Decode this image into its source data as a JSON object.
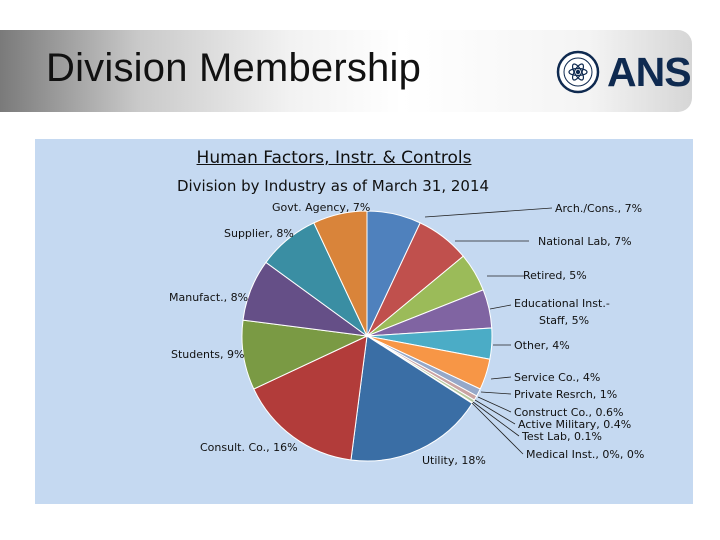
{
  "slide": {
    "title": "Division Membership",
    "logo_text": "ANS"
  },
  "chart_data": {
    "type": "pie",
    "title": "Human Factors, Instr. & Controls",
    "subtitle": "Division by Industry as of March 31, 2014",
    "slices": [
      {
        "label": "Govt. Agency, 7%",
        "name": "Govt. Agency",
        "value": 7,
        "color": "#4f81bd"
      },
      {
        "label": "National Lab, 7%",
        "name": "National Lab",
        "value": 7,
        "color": "#c0504d"
      },
      {
        "label": "Retired, 5%",
        "name": "Retired",
        "value": 5,
        "color": "#9bbb59"
      },
      {
        "label": "Educational Inst.-Staff, 5%",
        "name": "Educational Inst.-Staff",
        "value": 5,
        "color": "#8064a2"
      },
      {
        "label": "Other, 4%",
        "name": "Other",
        "value": 4,
        "color": "#4bacc6"
      },
      {
        "label": "Service Co., 4%",
        "name": "Service Co.",
        "value": 4,
        "color": "#f79646"
      },
      {
        "label": "Private Resrch, 1%",
        "name": "Private Resrch",
        "value": 1,
        "color": "#95a8c9"
      },
      {
        "label": "Construct Co., 0.6%",
        "name": "Construct Co.",
        "value": 0.6,
        "color": "#c9a3a2"
      },
      {
        "label": "Active Military, 0.4%",
        "name": "Active Military",
        "value": 0.4,
        "color": "#b7c99e"
      },
      {
        "label": "Test Lab, 0.1%",
        "name": "Test Lab",
        "value": 0.1,
        "color": "#a99bbd"
      },
      {
        "label": "Medical Inst., 0%, 0%",
        "name": "Medical Inst.",
        "value": 0,
        "color": "#9fc9d6"
      },
      {
        "label": "Utility, 18%",
        "name": "Utility",
        "value": 18,
        "color": "#3a6ea5"
      },
      {
        "label": "Consult. Co., 16%",
        "name": "Consult. Co.",
        "value": 16,
        "color": "#b23c3a"
      },
      {
        "label": "Students, 9%",
        "name": "Students",
        "value": 9,
        "color": "#7a9a44"
      },
      {
        "label": "Manufact., 8%",
        "name": "Manufact.",
        "value": 8,
        "color": "#654f87"
      },
      {
        "label": "Supplier, 8%",
        "name": "Supplier",
        "value": 8,
        "color": "#3a8ea3"
      },
      {
        "label": "Arch./Cons., 7%",
        "name": "Arch./Cons.",
        "value": 7,
        "color": "#d9843a"
      }
    ]
  }
}
